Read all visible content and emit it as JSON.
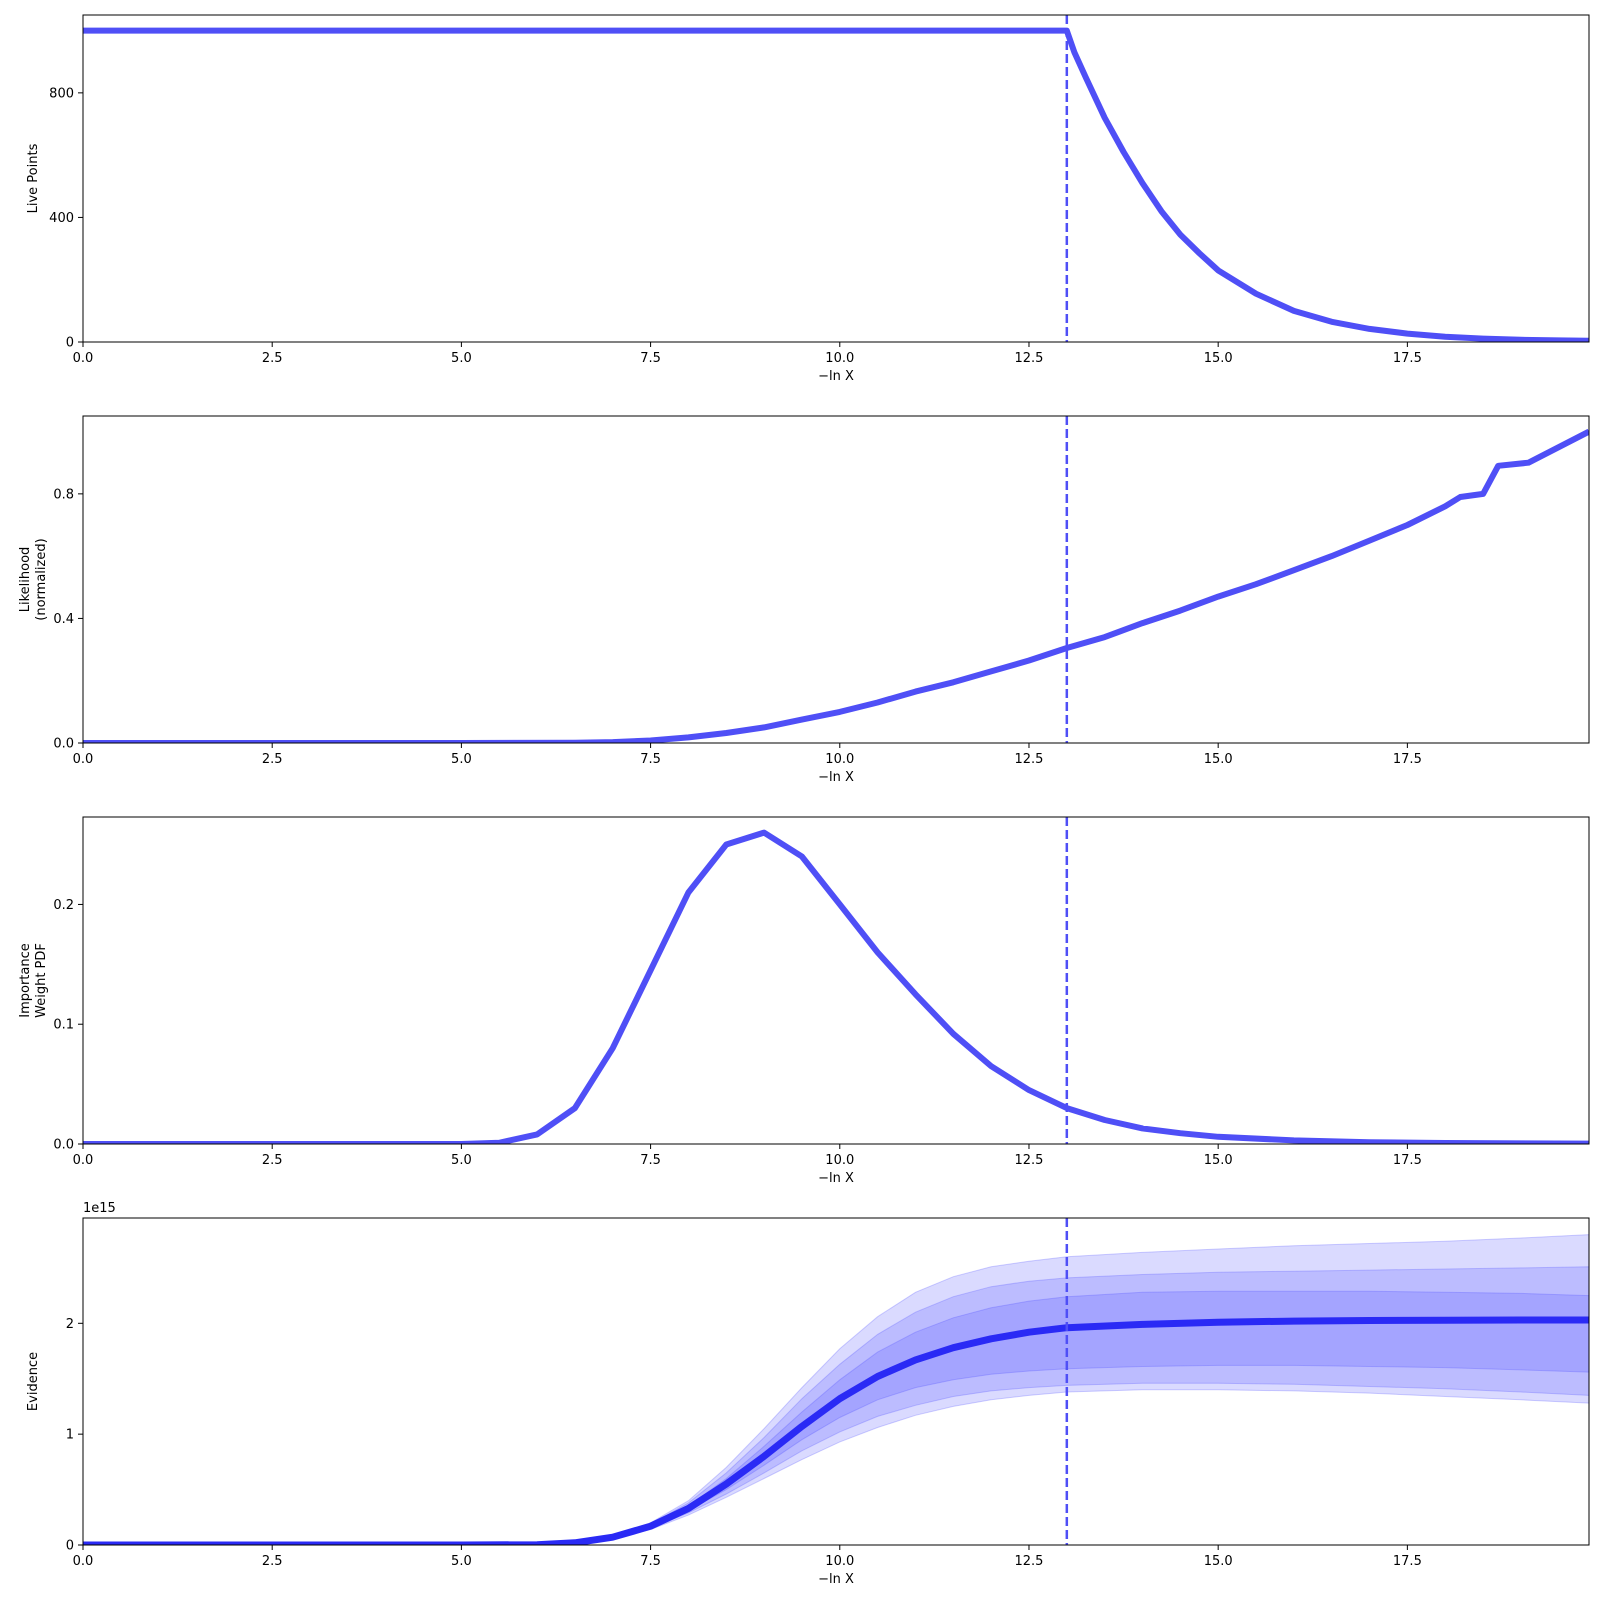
{
  "colors": {
    "line": "#4f4ff6",
    "evidence_line": "#2a2af5",
    "band": "#4444ff",
    "axes": "#000000",
    "background": "#ffffff"
  },
  "chart_data": [
    {
      "type": "line",
      "ylabel_lines": [
        "Live Points"
      ],
      "xlabel": "−ln X",
      "xlim": [
        0,
        19.9
      ],
      "ylim": [
        0,
        1050
      ],
      "xticks": [
        0,
        2.5,
        5,
        7.5,
        10,
        12.5,
        15,
        17.5
      ],
      "xtick_labels": [
        "0.0",
        "2.5",
        "5.0",
        "7.5",
        "10.0",
        "12.5",
        "15.0",
        "17.5"
      ],
      "yticks": [
        0,
        400,
        800
      ],
      "ytick_labels": [
        "0",
        "400",
        "800"
      ],
      "vline_x": 13.0,
      "series": [
        {
          "x": [
            0,
            13.0,
            13.1,
            13.25,
            13.5,
            13.75,
            14.0,
            14.25,
            14.5,
            14.75,
            15.0,
            15.5,
            16.0,
            16.5,
            17.0,
            17.5,
            18.0,
            18.5,
            19.0,
            19.5,
            19.9
          ],
          "y": [
            1000,
            1000,
            930,
            850,
            720,
            610,
            510,
            420,
            345,
            285,
            230,
            155,
            100,
            65,
            42,
            27,
            17,
            11,
            7,
            5,
            4
          ]
        }
      ]
    },
    {
      "type": "line",
      "ylabel_lines": [
        "Likelihood",
        "(normalized)"
      ],
      "xlabel": "−ln X",
      "xlim": [
        0,
        19.9
      ],
      "ylim": [
        0,
        1.05
      ],
      "xticks": [
        0,
        2.5,
        5,
        7.5,
        10,
        12.5,
        15,
        17.5
      ],
      "xtick_labels": [
        "0.0",
        "2.5",
        "5.0",
        "7.5",
        "10.0",
        "12.5",
        "15.0",
        "17.5"
      ],
      "yticks": [
        0,
        0.4,
        0.8
      ],
      "ytick_labels": [
        "0.0",
        "0.4",
        "0.8"
      ],
      "vline_x": 13.0,
      "series": [
        {
          "x": [
            0,
            5.0,
            6.5,
            7.0,
            7.5,
            8.0,
            8.5,
            9.0,
            9.5,
            10.0,
            10.5,
            11.0,
            11.5,
            12.0,
            12.5,
            13.0,
            13.5,
            14.0,
            14.5,
            15.0,
            15.5,
            16.0,
            16.5,
            17.0,
            17.5,
            18.0,
            18.2,
            18.5,
            18.7,
            19.1,
            19.9
          ],
          "y": [
            0,
            0,
            0.001,
            0.003,
            0.008,
            0.018,
            0.032,
            0.05,
            0.075,
            0.1,
            0.13,
            0.165,
            0.195,
            0.23,
            0.265,
            0.305,
            0.34,
            0.385,
            0.425,
            0.47,
            0.51,
            0.555,
            0.6,
            0.65,
            0.7,
            0.76,
            0.79,
            0.8,
            0.89,
            0.9,
            1.0
          ]
        }
      ]
    },
    {
      "type": "line",
      "ylabel_lines": [
        "Importance",
        "Weight PDF"
      ],
      "xlabel": "−ln X",
      "xlim": [
        0,
        19.9
      ],
      "ylim": [
        0,
        0.273
      ],
      "xticks": [
        0,
        2.5,
        5,
        7.5,
        10,
        12.5,
        15,
        17.5
      ],
      "xtick_labels": [
        "0.0",
        "2.5",
        "5.0",
        "7.5",
        "10.0",
        "12.5",
        "15.0",
        "17.5"
      ],
      "yticks": [
        0,
        0.1,
        0.2
      ],
      "ytick_labels": [
        "0.0",
        "0.1",
        "0.2"
      ],
      "vline_x": 13.0,
      "series": [
        {
          "x": [
            0,
            5.0,
            5.5,
            6.0,
            6.5,
            7.0,
            7.5,
            8.0,
            8.5,
            9.0,
            9.5,
            10.0,
            10.5,
            11.0,
            11.5,
            12.0,
            12.5,
            13.0,
            13.5,
            14.0,
            14.5,
            15.0,
            16.0,
            17.0,
            18.0,
            19.9
          ],
          "y": [
            0,
            0,
            0.001,
            0.008,
            0.03,
            0.08,
            0.145,
            0.21,
            0.25,
            0.26,
            0.24,
            0.2,
            0.16,
            0.125,
            0.092,
            0.065,
            0.045,
            0.03,
            0.02,
            0.013,
            0.009,
            0.006,
            0.003,
            0.0015,
            0.0008,
            0.0003
          ]
        }
      ]
    },
    {
      "type": "area",
      "ylabel_lines": [
        "Evidence"
      ],
      "xlabel": "−ln X",
      "offset_label": "1e15",
      "xlim": [
        0,
        19.9
      ],
      "ylim": [
        0,
        2.95
      ],
      "xticks": [
        0,
        2.5,
        5,
        7.5,
        10,
        12.5,
        15,
        17.5
      ],
      "xtick_labels": [
        "0.0",
        "2.5",
        "5.0",
        "7.5",
        "10.0",
        "12.5",
        "15.0",
        "17.5"
      ],
      "yticks": [
        0,
        1,
        2
      ],
      "ytick_labels": [
        "0",
        "1",
        "2"
      ],
      "vline_x": 13.0,
      "x": [
        0,
        5.0,
        6.0,
        6.5,
        7.0,
        7.5,
        8.0,
        8.5,
        9.0,
        9.5,
        10.0,
        10.5,
        11.0,
        11.5,
        12.0,
        12.5,
        13.0,
        14.0,
        15.0,
        16.0,
        17.0,
        18.0,
        19.0,
        19.9
      ],
      "median": [
        0,
        0,
        0.003,
        0.02,
        0.07,
        0.17,
        0.33,
        0.55,
        0.8,
        1.07,
        1.32,
        1.52,
        1.67,
        1.78,
        1.86,
        1.92,
        1.96,
        1.99,
        2.01,
        2.02,
        2.025,
        2.028,
        2.03,
        2.03
      ],
      "bands": [
        {
          "lower": [
            0,
            0,
            0.003,
            0.019,
            0.065,
            0.16,
            0.31,
            0.5,
            0.72,
            0.95,
            1.15,
            1.31,
            1.42,
            1.49,
            1.54,
            1.57,
            1.59,
            1.61,
            1.62,
            1.62,
            1.61,
            1.6,
            1.58,
            1.56
          ],
          "upper": [
            0,
            0,
            0.003,
            0.021,
            0.075,
            0.18,
            0.35,
            0.6,
            0.89,
            1.2,
            1.49,
            1.74,
            1.92,
            2.05,
            2.14,
            2.2,
            2.24,
            2.28,
            2.29,
            2.29,
            2.29,
            2.28,
            2.27,
            2.25
          ]
        },
        {
          "lower": [
            0,
            0,
            0.003,
            0.018,
            0.06,
            0.15,
            0.29,
            0.46,
            0.65,
            0.85,
            1.02,
            1.16,
            1.26,
            1.34,
            1.39,
            1.42,
            1.44,
            1.46,
            1.46,
            1.45,
            1.43,
            1.41,
            1.38,
            1.35
          ],
          "upper": [
            0,
            0,
            0.003,
            0.022,
            0.08,
            0.19,
            0.38,
            0.65,
            0.97,
            1.32,
            1.63,
            1.9,
            2.1,
            2.24,
            2.33,
            2.38,
            2.41,
            2.44,
            2.46,
            2.47,
            2.48,
            2.49,
            2.5,
            2.51
          ]
        },
        {
          "lower": [
            0,
            0,
            0.003,
            0.017,
            0.055,
            0.14,
            0.27,
            0.43,
            0.6,
            0.77,
            0.93,
            1.06,
            1.17,
            1.25,
            1.31,
            1.35,
            1.38,
            1.4,
            1.4,
            1.39,
            1.37,
            1.34,
            1.31,
            1.28
          ],
          "upper": [
            0,
            0,
            0.003,
            0.023,
            0.085,
            0.2,
            0.4,
            0.7,
            1.05,
            1.42,
            1.77,
            2.06,
            2.28,
            2.42,
            2.51,
            2.56,
            2.6,
            2.64,
            2.67,
            2.7,
            2.72,
            2.74,
            2.77,
            2.8
          ]
        }
      ]
    }
  ]
}
